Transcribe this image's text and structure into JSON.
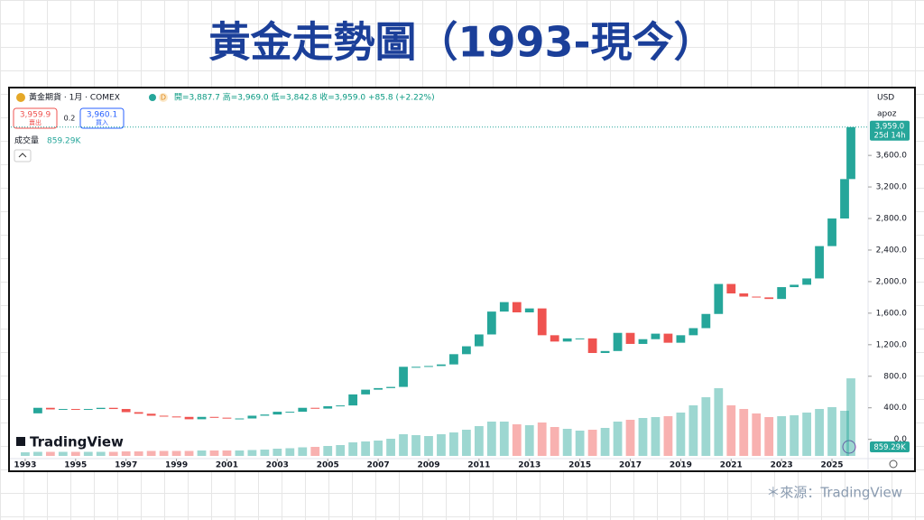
{
  "slide": {
    "title": "黃金走勢圖（1993-現今）",
    "source": "＊來源：TradingView"
  },
  "header": {
    "symbol": "黃金期貨 · 1月 · COMEX",
    "badge": "D",
    "ohlc": "開=3,887.7 高=3,969.0 低=3,842.8 收=3,959.0 +85.8 (+2.22%)",
    "sell_price": "3,959.9",
    "sell_label": "賣出",
    "spread": "0.2",
    "buy_price": "3,960.1",
    "buy_label": "買入",
    "currency": "USD",
    "scale_mode": "apoz",
    "logo": "TradingView"
  },
  "chart_data": {
    "type": "candlestick",
    "x": [
      1993,
      1993.5,
      1994,
      1994.5,
      1995,
      1995.5,
      1996,
      1996.5,
      1997,
      1997.5,
      1998,
      1998.5,
      1999,
      1999.5,
      2000,
      2000.5,
      2001,
      2001.5,
      2002,
      2002.5,
      2003,
      2003.5,
      2004,
      2004.5,
      2005,
      2005.5,
      2006,
      2006.5,
      2007,
      2007.5,
      2008,
      2008.5,
      2009,
      2009.5,
      2010,
      2010.5,
      2011,
      2011.5,
      2012,
      2012.5,
      2013,
      2013.5,
      2014,
      2014.5,
      2015,
      2015.5,
      2016,
      2016.5,
      2017,
      2017.5,
      2018,
      2018.5,
      2019,
      2019.5,
      2020,
      2020.5,
      2021,
      2021.5,
      2022,
      2022.5,
      2023,
      2023.5,
      2024,
      2024.5,
      2025,
      2025.5,
      2025.75
    ],
    "series": [
      {
        "color_up": "#26a69a",
        "color_down": "#ef5350",
        "values": [
          330,
          400,
          380,
          385,
          380,
          385,
          400,
          385,
          345,
          325,
          300,
          290,
          285,
          255,
          285,
          275,
          265,
          265,
          300,
          315,
          350,
          350,
          400,
          390,
          420,
          430,
          570,
          630,
          650,
          665,
          920,
          920,
          930,
          950,
          1080,
          1180,
          1330,
          1620,
          1740,
          1610,
          1660,
          1320,
          1240,
          1280,
          1280,
          1095,
          1120,
          1350,
          1210,
          1270,
          1340,
          1225,
          1320,
          1410,
          1590,
          1970,
          1850,
          1810,
          1800,
          1780,
          1930,
          1960,
          2040,
          2450,
          2800,
          3300,
          3959
        ]
      }
    ],
    "last_label": "3,959.0",
    "countdown": "25d 14h",
    "volume": {
      "label": "成交量",
      "last_label": "859.29K",
      "vlim": [
        0,
        1000
      ],
      "values": [
        40,
        45,
        45,
        45,
        45,
        45,
        45,
        45,
        50,
        50,
        55,
        55,
        55,
        55,
        60,
        60,
        60,
        60,
        65,
        70,
        80,
        85,
        95,
        100,
        110,
        120,
        150,
        160,
        170,
        190,
        240,
        230,
        220,
        240,
        260,
        290,
        330,
        380,
        380,
        350,
        340,
        370,
        320,
        300,
        280,
        290,
        310,
        380,
        400,
        420,
        430,
        440,
        480,
        560,
        650,
        750,
        560,
        520,
        470,
        430,
        440,
        450,
        480,
        520,
        540,
        500,
        859.29
      ]
    },
    "xlim": [
      1992.43,
      2026.43
    ],
    "xticks": [
      1993,
      1995,
      1997,
      1999,
      2001,
      2003,
      2005,
      2007,
      2009,
      2011,
      2013,
      2015,
      2017,
      2019,
      2021,
      2023,
      2025
    ],
    "ylim": [
      -244,
      4437
    ],
    "yticks": [
      {
        "value": 0,
        "label": "0.0"
      },
      {
        "value": 400,
        "label": "400.0"
      },
      {
        "value": 800,
        "label": "800.0"
      },
      {
        "value": 1200,
        "label": "1,200.0"
      },
      {
        "value": 1600,
        "label": "1,600.0"
      },
      {
        "value": 2000,
        "label": "2,000.0"
      },
      {
        "value": 2400,
        "label": "2,400.0"
      },
      {
        "value": 2800,
        "label": "2,800.0"
      },
      {
        "value": 3200,
        "label": "3,200.0"
      },
      {
        "value": 3600,
        "label": "3,600.0"
      }
    ]
  }
}
